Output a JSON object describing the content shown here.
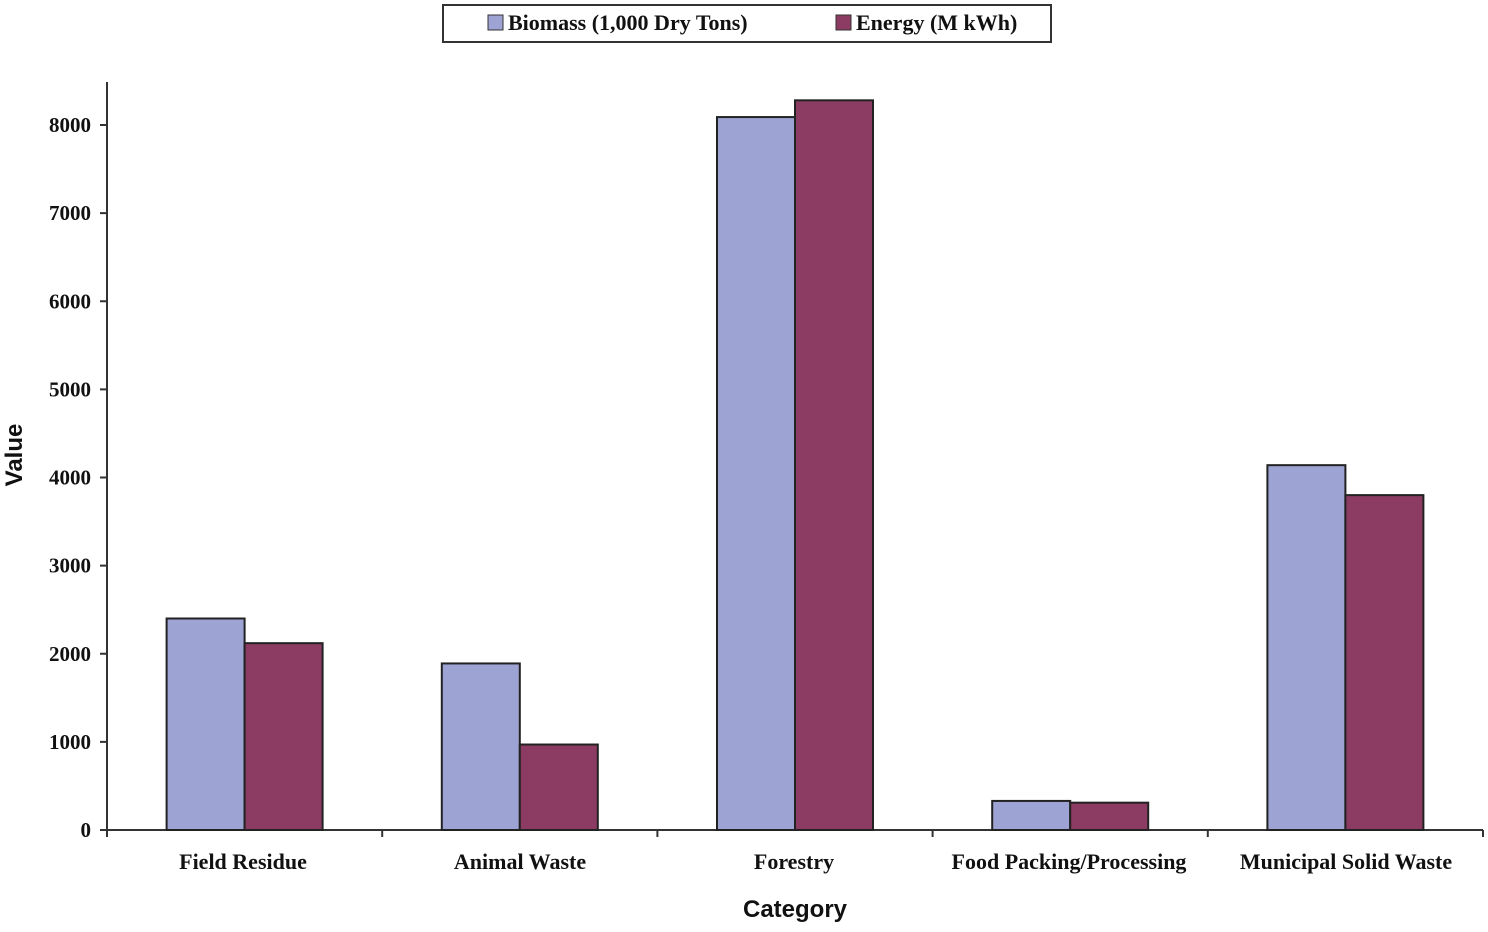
{
  "chart_data": {
    "type": "bar",
    "title": "",
    "xlabel": "Category",
    "ylabel": "Value",
    "categories": [
      "Field Residue",
      "Animal Waste",
      "Forestry",
      "Food Packing/Processing",
      "Municipal Solid Waste"
    ],
    "series": [
      {
        "name": "Biomass (1,000 Dry Tons)",
        "color": "#9da3d3",
        "values": [
          2400,
          1890,
          8090,
          330,
          4140
        ]
      },
      {
        "name": "Energy (M kWh)",
        "color": "#8c3c62",
        "values": [
          2120,
          970,
          8280,
          310,
          3800
        ]
      }
    ],
    "ylim": [
      0,
      8500
    ],
    "yticks": [
      0,
      1000,
      2000,
      3000,
      4000,
      5000,
      6000,
      7000,
      8000
    ],
    "legend_position": "top-center",
    "grid": false
  }
}
